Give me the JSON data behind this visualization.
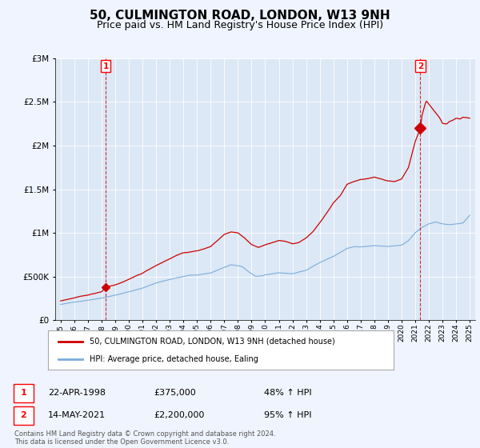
{
  "title": "50, CULMINGTON ROAD, LONDON, W13 9NH",
  "subtitle": "Price paid vs. HM Land Registry's House Price Index (HPI)",
  "title_fontsize": 11,
  "subtitle_fontsize": 9,
  "legend_line1": "50, CULMINGTON ROAD, LONDON, W13 9NH (detached house)",
  "legend_line2": "HPI: Average price, detached house, Ealing",
  "annotation1_date": "22-APR-1998",
  "annotation1_price": "£375,000",
  "annotation1_pct": "48% ↑ HPI",
  "annotation2_date": "14-MAY-2021",
  "annotation2_price": "£2,200,000",
  "annotation2_pct": "95% ↑ HPI",
  "footnote": "Contains HM Land Registry data © Crown copyright and database right 2024.\nThis data is licensed under the Open Government Licence v3.0.",
  "sale1_year": 1998.3,
  "sale1_price": 375000,
  "sale2_year": 2021.37,
  "sale2_price": 2200000,
  "red_color": "#cc0000",
  "blue_color": "#7aaddb",
  "background_color": "#f0f4ff",
  "plot_bg_color": "#dce8f5",
  "ylim": [
    0,
    3000000
  ],
  "xlim": [
    1994.6,
    2025.4
  ]
}
